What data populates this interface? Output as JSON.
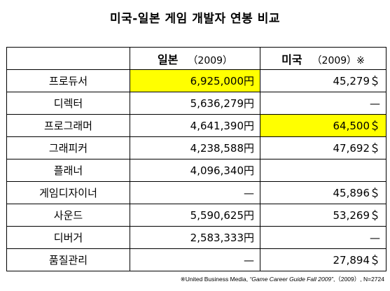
{
  "title": "미국-일본 게임 개발자 연봉 비교",
  "header": {
    "role": "",
    "japan": {
      "label": "일본",
      "year": "（2009）"
    },
    "usa": {
      "label": "미국",
      "year": "（2009）※"
    }
  },
  "rows": [
    {
      "role": "프로듀서",
      "japan": "6,925,000円",
      "usa": "45,279＄"
    },
    {
      "role": "디렉터",
      "japan": "5,636,279円",
      "usa": "—"
    },
    {
      "role": "프로그래머",
      "japan": "4,641,390円",
      "usa": "64,500＄"
    },
    {
      "role": "그래피커",
      "japan": "4,238,588円",
      "usa": "47,692＄"
    },
    {
      "role": "플래너",
      "japan": "4,096,340円",
      "usa": ""
    },
    {
      "role": "게임디자이너",
      "japan": "—",
      "usa": "45,896＄"
    },
    {
      "role": "사운드",
      "japan": "5,590,625円",
      "usa": "53,269＄"
    },
    {
      "role": "디버거",
      "japan": "2,583,333円",
      "usa": "—"
    },
    {
      "role": "품질관리",
      "japan": "—",
      "usa": "27,894＄"
    }
  ],
  "highlight_color": "#ffff00",
  "footnote": {
    "prefix": "※United Business Media, ",
    "source": "“Game Career Guide Fall 2009”",
    "suffix": ",（2009）, N=2724"
  }
}
